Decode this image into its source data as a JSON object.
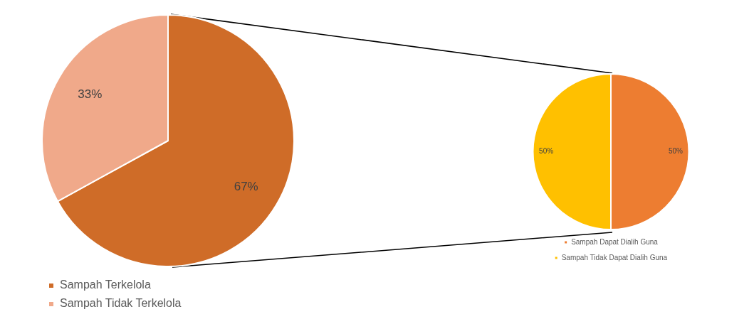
{
  "chart_data": [
    {
      "type": "pie",
      "categories": [
        "Sampah Terkelola",
        "Sampah Tidak Terkelola"
      ],
      "values": [
        67,
        33
      ],
      "colors": [
        "#cf6c28",
        "#f0a98a"
      ],
      "value_labels": [
        "67%",
        "33%"
      ],
      "legend": "bottom left"
    },
    {
      "type": "pie",
      "categories": [
        "Sampah Dapat Dialih Guna",
        "Sampah Tidak Dapat Dialih Guna"
      ],
      "values": [
        50,
        50
      ],
      "colors": [
        "#ed7d31",
        "#ffc000"
      ],
      "value_labels": [
        "50%",
        "50%"
      ],
      "legend": "bottom"
    }
  ]
}
